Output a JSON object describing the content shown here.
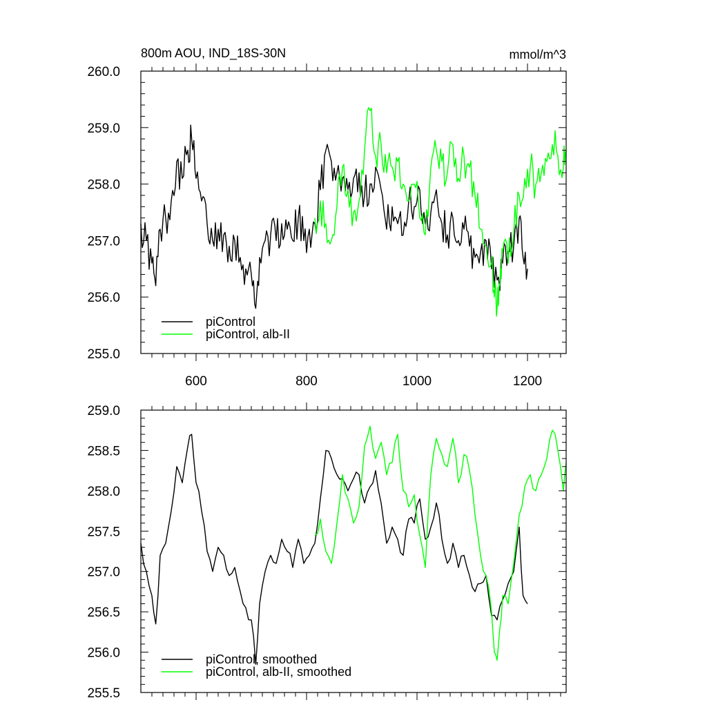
{
  "chart_data": [
    {
      "type": "line",
      "title": "800m AOU, IND_18S-30N",
      "units": "mmol/m^3",
      "xlim": [
        500,
        1270
      ],
      "ylim": [
        255.0,
        260.0
      ],
      "xticks": [
        600,
        800,
        1000,
        1200
      ],
      "yticks": [
        255.0,
        256.0,
        257.0,
        258.0,
        259.0,
        260.0
      ],
      "ytick_labels": [
        "255.0",
        "256.0",
        "257.0",
        "258.0",
        "259.0",
        "260.0"
      ],
      "xtick_labels": [
        "600",
        "800",
        "1000",
        "1200"
      ],
      "grid": false,
      "legend_position": "bottom-left",
      "series": [
        {
          "name": "piControl",
          "color": "#000000",
          "x": [
            500,
            510,
            520,
            527,
            535,
            545,
            555,
            565,
            575,
            585,
            592,
            600,
            610,
            620,
            630,
            640,
            650,
            660,
            670,
            680,
            690,
            700,
            708,
            715,
            725,
            735,
            745,
            755,
            765,
            775,
            785,
            795,
            805,
            815,
            825,
            835,
            845,
            855,
            865,
            875,
            885,
            895,
            905,
            915,
            925,
            935,
            945,
            955,
            965,
            975,
            985,
            995,
            1005,
            1015,
            1025,
            1035,
            1045,
            1055,
            1065,
            1075,
            1085,
            1095,
            1105,
            1115,
            1125,
            1135,
            1145,
            1155,
            1165,
            1175,
            1185,
            1192,
            1200
          ],
          "y": [
            257.3,
            257.0,
            256.6,
            256.2,
            257.2,
            257.4,
            257.7,
            258.4,
            258.1,
            258.6,
            258.8,
            258.1,
            257.7,
            257.3,
            257.0,
            257.2,
            257.1,
            256.9,
            257.0,
            256.7,
            256.5,
            256.4,
            255.8,
            256.7,
            257.0,
            257.1,
            257.0,
            257.3,
            257.2,
            257.0,
            257.4,
            257.0,
            257.2,
            257.3,
            257.9,
            258.6,
            258.4,
            258.2,
            258.1,
            257.9,
            258.1,
            258.2,
            257.8,
            258.0,
            258.3,
            257.9,
            257.2,
            257.6,
            257.3,
            257.1,
            257.7,
            257.6,
            257.9,
            257.3,
            257.5,
            257.9,
            257.3,
            257.1,
            257.4,
            257.0,
            257.2,
            256.9,
            256.7,
            256.8,
            257.0,
            256.5,
            256.3,
            256.6,
            256.8,
            256.9,
            257.4,
            256.7,
            256.5
          ]
        },
        {
          "name": "piControl, alb-II",
          "color": "#00ff00",
          "x": [
            815,
            825,
            835,
            845,
            855,
            865,
            875,
            885,
            895,
            905,
            915,
            925,
            935,
            945,
            955,
            965,
            975,
            985,
            995,
            1005,
            1015,
            1025,
            1035,
            1045,
            1055,
            1065,
            1075,
            1085,
            1095,
            1105,
            1115,
            1125,
            1135,
            1140,
            1145,
            1150,
            1155,
            1165,
            1175,
            1185,
            1195,
            1205,
            1215,
            1225,
            1235,
            1245,
            1255,
            1265,
            1270
          ],
          "y": [
            257.4,
            257.7,
            257.3,
            257.0,
            257.6,
            258.3,
            257.9,
            257.5,
            257.7,
            258.6,
            259.3,
            258.5,
            258.7,
            258.2,
            258.3,
            258.4,
            258.0,
            257.7,
            258.0,
            257.4,
            257.1,
            258.3,
            258.6,
            258.4,
            258.2,
            258.7,
            258.1,
            258.5,
            258.3,
            257.8,
            257.2,
            256.9,
            256.6,
            256.0,
            255.8,
            256.2,
            256.8,
            256.6,
            257.1,
            257.8,
            258.1,
            258.3,
            258.0,
            258.2,
            258.4,
            258.7,
            258.5,
            258.3,
            258.6
          ]
        }
      ]
    },
    {
      "type": "line",
      "title": "",
      "xlim": [
        500,
        1270
      ],
      "ylim": [
        255.5,
        259.0
      ],
      "xticks": [
        600,
        800,
        1000,
        1200
      ],
      "yticks": [
        255.5,
        256.0,
        256.5,
        257.0,
        257.5,
        258.0,
        258.5,
        259.0
      ],
      "ytick_labels": [
        "255.5",
        "256.0",
        "256.5",
        "257.0",
        "257.5",
        "258.0",
        "258.5",
        "259.0"
      ],
      "grid": false,
      "legend_position": "bottom-left",
      "series": [
        {
          "name": "piControl, smoothed",
          "color": "#000000",
          "x": [
            500,
            510,
            520,
            527,
            535,
            545,
            555,
            565,
            575,
            585,
            592,
            600,
            610,
            620,
            630,
            640,
            650,
            660,
            670,
            680,
            690,
            700,
            708,
            715,
            725,
            735,
            745,
            755,
            765,
            775,
            785,
            795,
            805,
            815,
            825,
            835,
            845,
            855,
            865,
            875,
            885,
            895,
            905,
            915,
            925,
            935,
            945,
            955,
            965,
            975,
            985,
            995,
            1005,
            1015,
            1025,
            1035,
            1045,
            1055,
            1065,
            1075,
            1085,
            1095,
            1105,
            1115,
            1125,
            1135,
            1145,
            1155,
            1165,
            1175,
            1185,
            1192,
            1200
          ],
          "y": [
            257.35,
            257.0,
            256.7,
            256.35,
            257.2,
            257.35,
            257.75,
            258.3,
            258.1,
            258.55,
            258.7,
            258.1,
            257.75,
            257.25,
            257.0,
            257.3,
            257.2,
            256.95,
            257.05,
            256.75,
            256.55,
            256.4,
            255.85,
            256.6,
            257.0,
            257.2,
            257.1,
            257.4,
            257.25,
            257.05,
            257.4,
            257.1,
            257.2,
            257.35,
            257.9,
            258.5,
            258.4,
            258.2,
            258.15,
            258.0,
            258.15,
            258.2,
            257.85,
            258.05,
            258.25,
            257.85,
            257.35,
            257.55,
            257.4,
            257.2,
            257.65,
            257.6,
            257.9,
            257.4,
            257.55,
            257.85,
            257.4,
            257.1,
            257.35,
            257.05,
            257.2,
            256.95,
            256.75,
            256.85,
            256.95,
            256.45,
            256.4,
            256.65,
            256.85,
            257.0,
            257.55,
            256.7,
            256.6
          ]
        },
        {
          "name": "piControl, alb-II, smoothed",
          "color": "#00ff00",
          "x": [
            815,
            825,
            835,
            845,
            855,
            865,
            875,
            885,
            895,
            905,
            915,
            925,
            935,
            945,
            955,
            965,
            975,
            985,
            995,
            1005,
            1015,
            1025,
            1035,
            1045,
            1055,
            1065,
            1075,
            1085,
            1095,
            1105,
            1115,
            1125,
            1135,
            1140,
            1145,
            1150,
            1155,
            1165,
            1175,
            1185,
            1195,
            1205,
            1215,
            1225,
            1235,
            1245,
            1255,
            1265,
            1270
          ],
          "y": [
            257.45,
            257.65,
            257.25,
            257.1,
            257.6,
            258.2,
            257.9,
            257.6,
            257.8,
            258.55,
            258.8,
            258.4,
            258.6,
            258.2,
            258.35,
            258.7,
            258.0,
            257.8,
            257.95,
            257.45,
            257.05,
            258.2,
            258.65,
            258.45,
            258.3,
            258.65,
            258.1,
            258.45,
            258.25,
            257.7,
            257.2,
            256.95,
            256.5,
            256.0,
            255.9,
            256.3,
            256.7,
            256.6,
            257.1,
            257.7,
            258.05,
            258.2,
            258.0,
            258.2,
            258.4,
            258.75,
            258.5,
            258.0,
            258.35
          ]
        }
      ]
    }
  ]
}
